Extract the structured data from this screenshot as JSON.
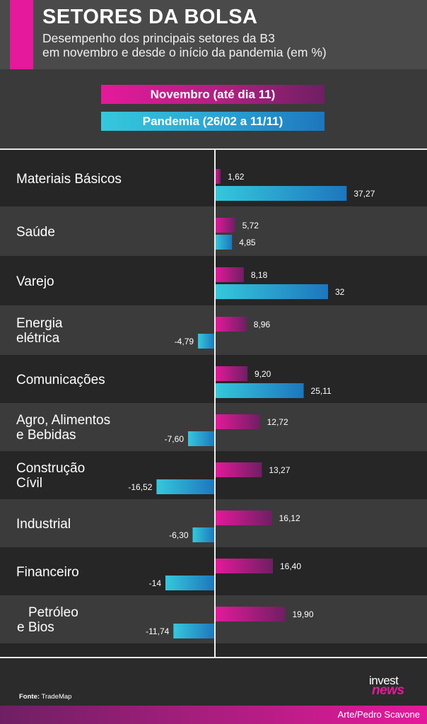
{
  "header": {
    "title": "SETORES DA BOLSA",
    "subtitle_line1": "Desempenho dos principais setores da B3",
    "subtitle_line2": "em novembro e desde o início da pandemia (em %)"
  },
  "legend": {
    "november": "Novembro (até dia 11)",
    "pandemic": "Pandemia (26/02 a 11/11)"
  },
  "colors": {
    "november_start": "#e5199b",
    "november_end": "#6e1f63",
    "pandemic_start": "#35c8dc",
    "pandemic_end": "#1d76bd",
    "row_dark": "#262626",
    "row_light": "#3b3b3b"
  },
  "chart_data": {
    "type": "bar",
    "orientation": "horizontal",
    "categories": [
      [
        "Materiais Básicos"
      ],
      [
        "Saúde"
      ],
      [
        "Varejo"
      ],
      [
        "Energia",
        "elétrica"
      ],
      [
        "Comunicações"
      ],
      [
        "Agro, Alimentos",
        "e Bebidas"
      ],
      [
        "Construção",
        "Cívil"
      ],
      [
        "Industrial"
      ],
      [
        "Financeiro"
      ],
      [
        "Petróleo",
        "e Bios"
      ]
    ],
    "series": [
      {
        "name": "Novembro (até dia 11)",
        "values": [
          1.62,
          5.72,
          8.18,
          8.96,
          9.2,
          12.72,
          13.27,
          16.12,
          16.4,
          19.9
        ],
        "labels": [
          "1,62",
          "5,72",
          "8,18",
          "8,96",
          "9,20",
          "12,72",
          "13,27",
          "16,12",
          "16,40",
          "19,90"
        ]
      },
      {
        "name": "Pandemia (26/02 a 11/11)",
        "values": [
          37.27,
          4.85,
          32,
          -4.79,
          25.11,
          -7.6,
          -16.52,
          -6.3,
          -14,
          -11.74
        ],
        "labels": [
          "37,27",
          "4,85",
          "32",
          "-4,79",
          "25,11",
          "-7,60",
          "-16,52",
          "-6,30",
          "-14",
          "-11,74"
        ]
      }
    ]
  },
  "footer": {
    "source_label": "Fonte:",
    "source_value": "TradeMap",
    "logo_top": "invest",
    "logo_bottom": "news",
    "credit": "Arte/Pedro Scavone"
  }
}
